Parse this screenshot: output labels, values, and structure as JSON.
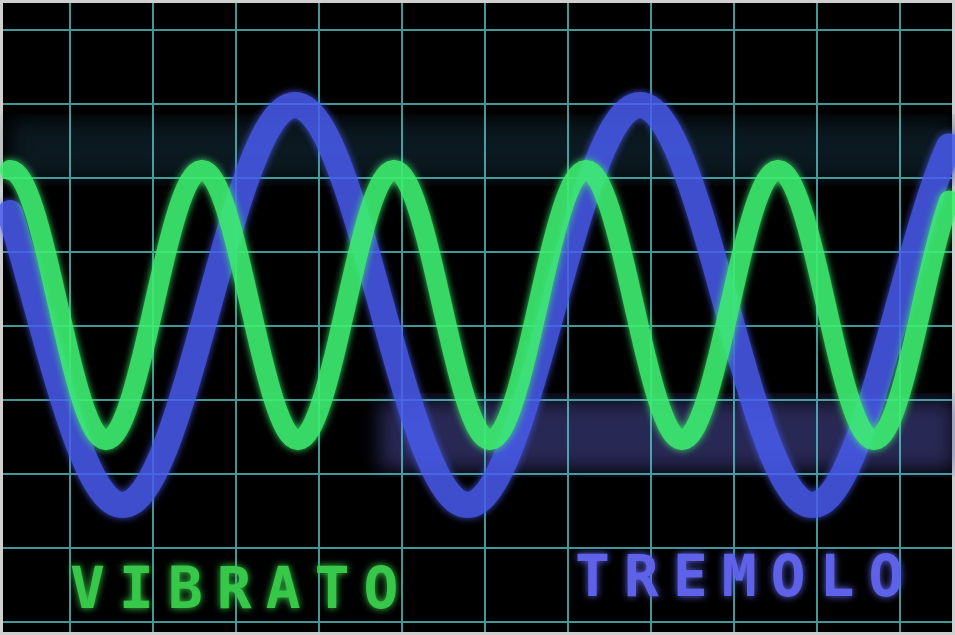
{
  "labels": {
    "left": "VIBRATO",
    "right": "TREMOLO"
  }
}
